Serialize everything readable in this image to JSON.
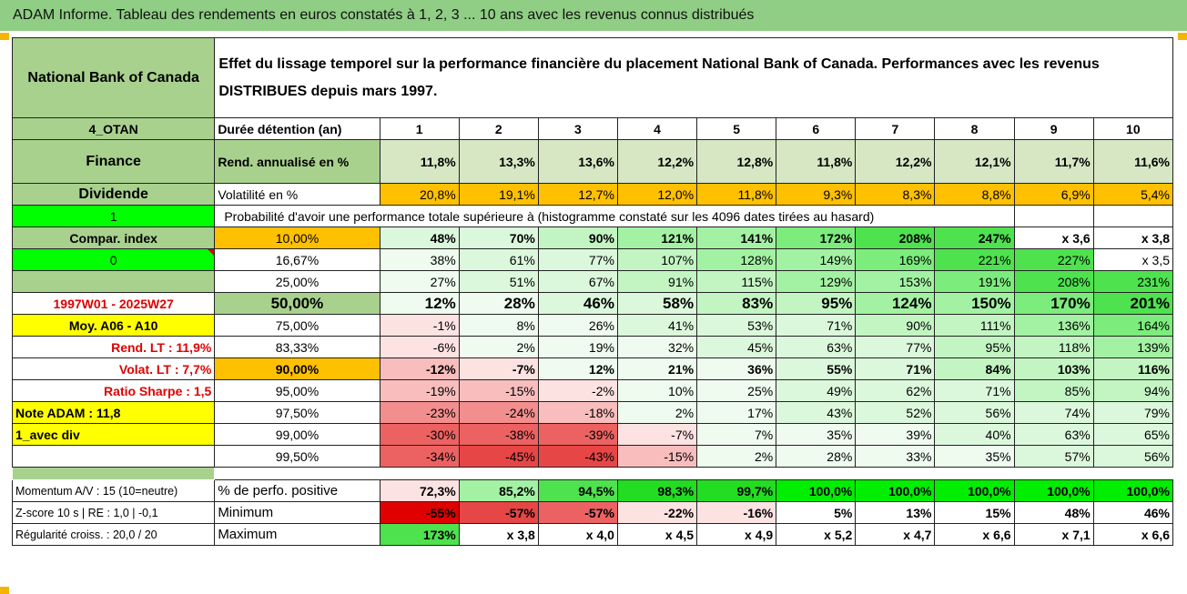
{
  "title": "ADAM Informe. Tableau des rendements en euros constatés à 1, 2, 3 ... 10 ans avec les revenus connus distribués",
  "fund": {
    "name": "National Bank of Canada",
    "description": "Effet du lissage temporel sur la performance financière du placement National Bank of Canada. Performances avec les revenus DISTRIBUES depuis mars 1997."
  },
  "left_labels": {
    "code": "4_OTAN",
    "sector": "Finance",
    "income_type": "Dividende",
    "one": "1",
    "compar_index": "Compar. index",
    "zero": "0",
    "period": "1997W01 - 2025W27",
    "moy": "Moy. A06 - A10",
    "rend_lt": "Rend. LT :   11,9%",
    "volat_lt": "Volat. LT :   7,7%",
    "sharpe": "Ratio Sharpe :   1,5",
    "note": "Note ADAM : 11,8",
    "avec_div": "1_avec div",
    "momentum": "Momentum A/V : 15 (10=neutre)",
    "zscore": "Z-score 10 s | RE : 1,0 | -0,1",
    "regularite": "Régularité croiss. : 20,0 / 20"
  },
  "headers": {
    "duree": "Durée détention (an)",
    "years": [
      "1",
      "2",
      "3",
      "4",
      "5",
      "6",
      "7",
      "8",
      "9",
      "10"
    ],
    "rend": "Rend. annualisé en %",
    "rend_values": [
      "11,8%",
      "13,3%",
      "13,6%",
      "12,2%",
      "12,8%",
      "11,8%",
      "12,2%",
      "12,1%",
      "11,7%",
      "11,6%"
    ],
    "vol": "Volatilité en %",
    "vol_values": [
      "20,8%",
      "19,1%",
      "12,7%",
      "12,0%",
      "11,8%",
      "9,3%",
      "8,3%",
      "8,8%",
      "6,9%",
      "5,4%"
    ],
    "proba": "Probabilité d'avoir une performance totale supérieure à (histogramme constaté sur les 4096 dates tirées au hasard)"
  },
  "distribution": [
    {
      "pct": "10,00%",
      "values": [
        "48%",
        "70%",
        "90%",
        "121%",
        "141%",
        "172%",
        "208%",
        "247%",
        "x 3,6",
        "x 3,8"
      ]
    },
    {
      "pct": "16,67%",
      "values": [
        "38%",
        "61%",
        "77%",
        "107%",
        "128%",
        "149%",
        "169%",
        "221%",
        "227%",
        "x 3,5"
      ]
    },
    {
      "pct": "25,00%",
      "values": [
        "27%",
        "51%",
        "67%",
        "91%",
        "115%",
        "129%",
        "153%",
        "191%",
        "208%",
        "231%"
      ]
    },
    {
      "pct": "50,00%",
      "values": [
        "12%",
        "28%",
        "46%",
        "58%",
        "83%",
        "95%",
        "124%",
        "150%",
        "170%",
        "201%"
      ]
    },
    {
      "pct": "75,00%",
      "values": [
        "-1%",
        "8%",
        "26%",
        "41%",
        "53%",
        "71%",
        "90%",
        "111%",
        "136%",
        "164%"
      ]
    },
    {
      "pct": "83,33%",
      "values": [
        "-6%",
        "2%",
        "19%",
        "32%",
        "45%",
        "63%",
        "77%",
        "95%",
        "118%",
        "139%"
      ]
    },
    {
      "pct": "90,00%",
      "values": [
        "-12%",
        "-7%",
        "12%",
        "21%",
        "36%",
        "55%",
        "71%",
        "84%",
        "103%",
        "116%"
      ]
    },
    {
      "pct": "95,00%",
      "values": [
        "-19%",
        "-15%",
        "-2%",
        "10%",
        "25%",
        "49%",
        "62%",
        "71%",
        "85%",
        "94%"
      ]
    },
    {
      "pct": "97,50%",
      "values": [
        "-23%",
        "-24%",
        "-18%",
        "2%",
        "17%",
        "43%",
        "52%",
        "56%",
        "74%",
        "79%"
      ]
    },
    {
      "pct": "99,00%",
      "values": [
        "-30%",
        "-38%",
        "-39%",
        "-7%",
        "7%",
        "35%",
        "39%",
        "40%",
        "63%",
        "65%"
      ]
    },
    {
      "pct": "99,50%",
      "values": [
        "-34%",
        "-45%",
        "-43%",
        "-15%",
        "2%",
        "28%",
        "33%",
        "35%",
        "57%",
        "56%"
      ]
    }
  ],
  "bottom": {
    "positive_label": "% de perfo. positive",
    "positive_values": [
      "72,3%",
      "85,2%",
      "94,5%",
      "98,3%",
      "99,7%",
      "100,0%",
      "100,0%",
      "100,0%",
      "100,0%",
      "100,0%"
    ],
    "min_label": "Minimum",
    "min_values": [
      "-55%",
      "-57%",
      "-57%",
      "-22%",
      "-16%",
      "5%",
      "13%",
      "15%",
      "48%",
      "46%"
    ],
    "max_label": "Maximum",
    "max_values": [
      "173%",
      "x 3,8",
      "x 4,0",
      "x 4,5",
      "x 4,9",
      "x 5,2",
      "x 4,7",
      "x 6,6",
      "x 7,1",
      "x 6,6"
    ]
  }
}
